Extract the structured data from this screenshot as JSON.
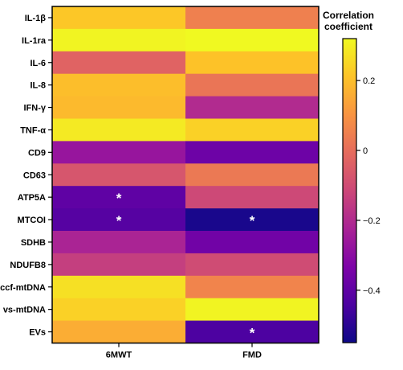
{
  "chart_data": {
    "type": "heatmap",
    "rows": [
      "IL-1β",
      "IL-1ra",
      "IL-6",
      "IL-8",
      "IFN-γ",
      "TNF-α",
      "CD9",
      "CD63",
      "ATP5A",
      "MTCOI",
      "SDHB",
      "NDUFB8",
      "ccf-mtDNA",
      "vs-mtDNA",
      "EVs"
    ],
    "columns": [
      "6MWT",
      "FMD"
    ],
    "values": [
      [
        0.22,
        0.05
      ],
      [
        0.31,
        0.32
      ],
      [
        -0.03,
        0.21
      ],
      [
        0.2,
        0.02
      ],
      [
        0.19,
        -0.2
      ],
      [
        0.29,
        0.24
      ],
      [
        -0.27,
        -0.37
      ],
      [
        -0.07,
        0.03
      ],
      [
        -0.4,
        -0.11
      ],
      [
        -0.42,
        -0.53
      ],
      [
        -0.22,
        -0.36
      ],
      [
        -0.14,
        -0.1
      ],
      [
        0.27,
        0.06
      ],
      [
        0.24,
        0.31
      ],
      [
        0.16,
        -0.44
      ]
    ],
    "significance": [
      [
        "",
        ""
      ],
      [
        "",
        ""
      ],
      [
        "",
        ""
      ],
      [
        "",
        ""
      ],
      [
        "",
        ""
      ],
      [
        "",
        ""
      ],
      [
        "",
        ""
      ],
      [
        "",
        ""
      ],
      [
        "*",
        ""
      ],
      [
        "*",
        "*"
      ],
      [
        "",
        ""
      ],
      [
        "",
        ""
      ],
      [
        "",
        ""
      ],
      [
        "",
        ""
      ],
      [
        "",
        "*"
      ]
    ],
    "colorbar": {
      "title_lines": [
        "Correlation",
        "coefficient"
      ],
      "min": -0.55,
      "max": 0.32,
      "ticks": [
        0.2,
        0,
        -0.2,
        -0.4
      ],
      "tick_labels": [
        "0.2",
        "0",
        "−0.2",
        "−0.4"
      ],
      "colormap": "plasma",
      "stops": [
        "#0d0887",
        "#4c02a1",
        "#7e03a8",
        "#a92395",
        "#cc4778",
        "#e56b5d",
        "#f89441",
        "#fdc328",
        "#f0f921"
      ]
    },
    "grid": false
  }
}
